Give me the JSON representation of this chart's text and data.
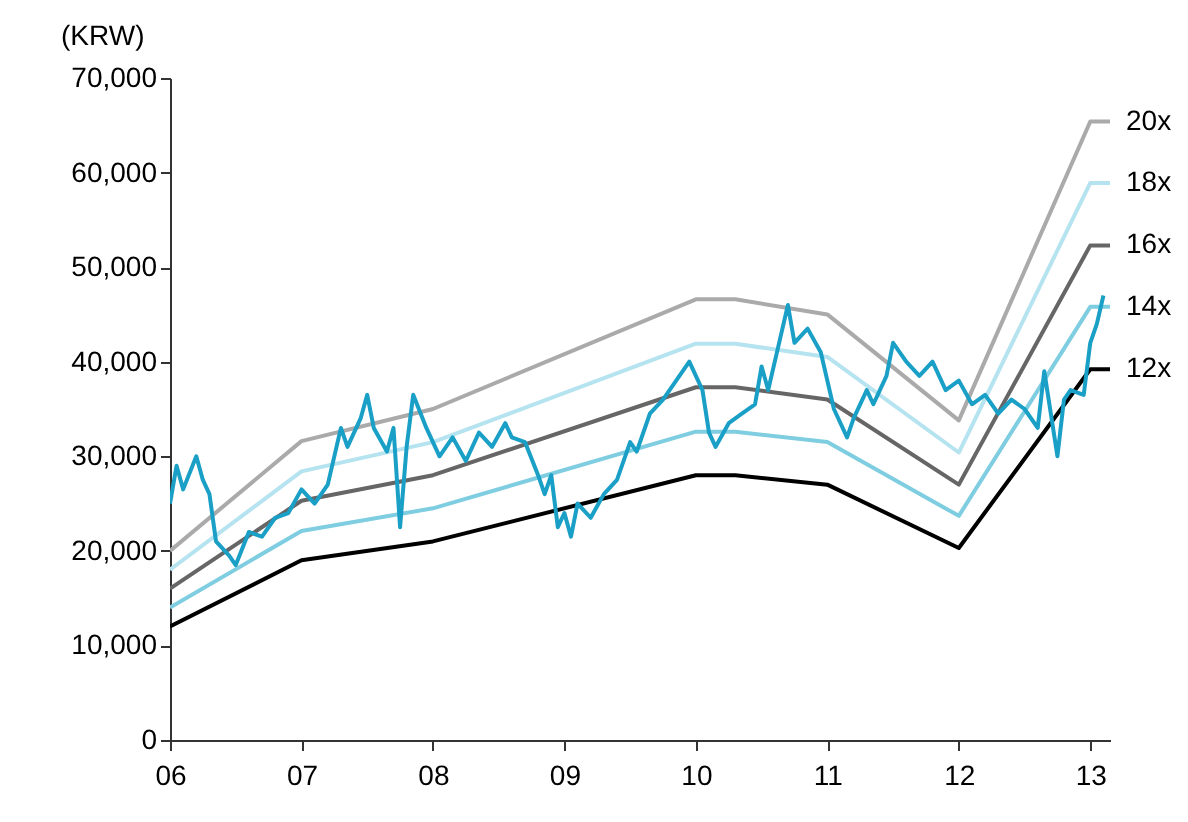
{
  "chart_data": {
    "type": "line",
    "ylabel": "(KRW)",
    "xlim": [
      2006,
      2013.15
    ],
    "xticks": [
      {
        "value": 2006,
        "label": "06"
      },
      {
        "value": 2007,
        "label": "07"
      },
      {
        "value": 2008,
        "label": "08"
      },
      {
        "value": 2009,
        "label": "09"
      },
      {
        "value": 2010,
        "label": "10"
      },
      {
        "value": 2011,
        "label": "11"
      },
      {
        "value": 2012,
        "label": "12"
      },
      {
        "value": 2013,
        "label": "13"
      }
    ],
    "ylim": [
      0,
      70000
    ],
    "yticks": [
      0,
      {
        "value": 10000,
        "label": "10,000"
      },
      {
        "value": 20000,
        "label": "20,000"
      },
      {
        "value": 30000,
        "label": "30,000"
      },
      {
        "value": 40000,
        "label": "40,000"
      },
      {
        "value": 50000,
        "label": "50,000"
      },
      {
        "value": 60000,
        "label": "60,000"
      },
      {
        "value": 70000,
        "label": "70,000"
      }
    ],
    "grid": false,
    "line_style": "solid",
    "marker": "none",
    "series": [
      {
        "name": "20x",
        "color": "#aaaaaa",
        "x": [
          2006,
          2007,
          2008,
          2010,
          2010.3,
          2011,
          2012,
          2013,
          2013.15
        ],
        "values": [
          20000,
          31600,
          35000,
          46600,
          46600,
          45000,
          33800,
          65400,
          65400
        ]
      },
      {
        "name": "18x",
        "color": "#b5e3ef",
        "x": [
          2006,
          2007,
          2008,
          2010,
          2010.3,
          2011,
          2012,
          2013,
          2013.15
        ],
        "values": [
          18000,
          28400,
          31500,
          41900,
          41900,
          40500,
          30400,
          58900,
          58900
        ]
      },
      {
        "name": "16x",
        "color": "#666666",
        "x": [
          2006,
          2007,
          2008,
          2010,
          2010.3,
          2011,
          2012,
          2013,
          2013.15
        ],
        "values": [
          16000,
          25300,
          28000,
          37300,
          37300,
          36000,
          27000,
          52300,
          52300
        ]
      },
      {
        "name": "14x",
        "color": "#7fcde0",
        "x": [
          2006,
          2007,
          2008,
          2010,
          2010.3,
          2011,
          2012,
          2013,
          2013.15
        ],
        "values": [
          14000,
          22100,
          24500,
          32600,
          32600,
          31500,
          23700,
          45800,
          45800
        ]
      },
      {
        "name": "12x",
        "color": "#000000",
        "x": [
          2006,
          2007,
          2008,
          2010,
          2010.3,
          2011,
          2012,
          2013,
          2013.15
        ],
        "values": [
          12000,
          19000,
          21000,
          28000,
          28000,
          27000,
          20300,
          39200,
          39200
        ]
      },
      {
        "color": "#1a9fc6",
        "x": [
          2006,
          2006.05,
          2006.1,
          2006.2,
          2006.25,
          2006.3,
          2006.35,
          2006.45,
          2006.5,
          2006.6,
          2006.7,
          2006.8,
          2006.9,
          2007,
          2007.1,
          2007.2,
          2007.3,
          2007.35,
          2007.45,
          2007.5,
          2007.55,
          2007.65,
          2007.7,
          2007.75,
          2007.8,
          2007.85,
          2007.95,
          2008.05,
          2008.15,
          2008.25,
          2008.35,
          2008.45,
          2008.55,
          2008.6,
          2008.7,
          2008.8,
          2008.85,
          2008.9,
          2008.95,
          2009,
          2009.05,
          2009.1,
          2009.2,
          2009.3,
          2009.4,
          2009.5,
          2009.55,
          2009.65,
          2009.75,
          2009.85,
          2009.95,
          2010.05,
          2010.1,
          2010.15,
          2010.25,
          2010.35,
          2010.45,
          2010.5,
          2010.55,
          2010.65,
          2010.7,
          2010.75,
          2010.85,
          2010.95,
          2011,
          2011.05,
          2011.15,
          2011.2,
          2011.3,
          2011.35,
          2011.45,
          2011.5,
          2011.6,
          2011.7,
          2011.8,
          2011.9,
          2012,
          2012.1,
          2012.2,
          2012.3,
          2012.4,
          2012.5,
          2012.6,
          2012.65,
          2012.75,
          2012.8,
          2012.85,
          2012.95,
          2013,
          2013.05,
          2013.1
        ],
        "values": [
          25000,
          29000,
          26500,
          30000,
          27500,
          26000,
          21000,
          19500,
          18500,
          22000,
          21500,
          23500,
          24000,
          26500,
          25000,
          27000,
          33000,
          31000,
          34000,
          36500,
          33000,
          30500,
          33000,
          22500,
          31000,
          36500,
          33000,
          30000,
          32000,
          29500,
          32500,
          31000,
          33500,
          32000,
          31500,
          28000,
          26000,
          28000,
          22500,
          24000,
          21500,
          25000,
          23500,
          26000,
          27500,
          31500,
          30500,
          34500,
          36000,
          38000,
          40000,
          37000,
          32500,
          31000,
          33500,
          34500,
          35500,
          39500,
          37000,
          43000,
          46000,
          42000,
          43500,
          41000,
          38000,
          35000,
          32000,
          34000,
          37000,
          35500,
          38500,
          42000,
          40000,
          38500,
          40000,
          37000,
          38000,
          35500,
          36500,
          34500,
          36000,
          35000,
          33000,
          39000,
          30000,
          36000,
          37000,
          36500,
          42000,
          44000,
          47000
        ]
      }
    ]
  }
}
